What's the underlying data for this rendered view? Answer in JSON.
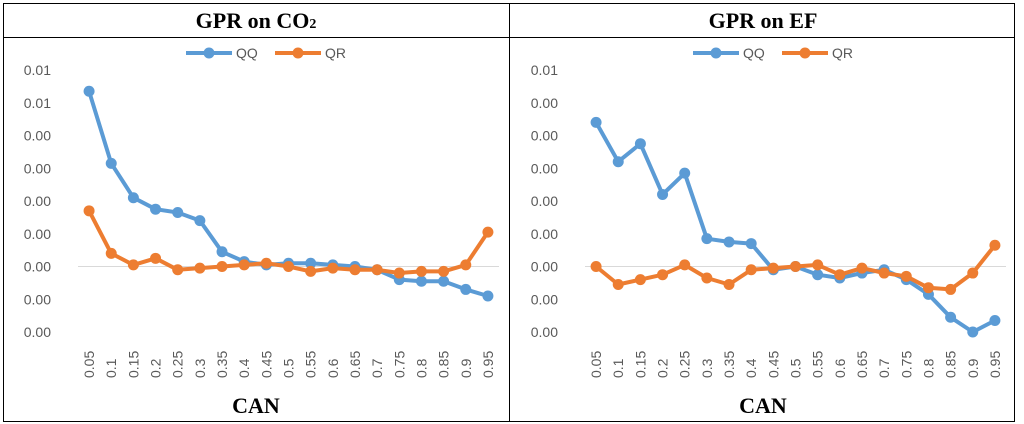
{
  "panels": [
    {
      "title_main": "GPR on CO",
      "title_sub": "2",
      "xlabel": "CAN"
    },
    {
      "title_main": "GPR on EF",
      "title_sub": "",
      "xlabel": "CAN"
    }
  ],
  "colors": {
    "QQ": "#5b9bd5",
    "QR": "#ed7d31",
    "zero_line": "#d9d9d9",
    "axis_text": "#595959"
  },
  "chart_data": [
    {
      "type": "line",
      "title": "GPR on CO₂",
      "xlabel": "CAN",
      "ylabel": "",
      "x": [
        "0.05",
        "0.1",
        "0.15",
        "0.2",
        "0.25",
        "0.3",
        "0.35",
        "0.4",
        "0.45",
        "0.5",
        "0.55",
        "0.6",
        "0.65",
        "0.7",
        "0.75",
        "0.8",
        "0.85",
        "0.9",
        "0.95"
      ],
      "y_tick_labels": [
        "0.01",
        "0.01",
        "0.00",
        "0.00",
        "0.00",
        "0.00",
        "0.00",
        "0.00",
        "0.00"
      ],
      "ylim": [
        -0.004,
        0.012
      ],
      "grid": false,
      "legend": "top",
      "series": [
        {
          "name": "QQ",
          "values": [
            0.0107,
            0.0063,
            0.0042,
            0.0035,
            0.0033,
            0.0028,
            0.0009,
            0.0003,
            0.0001,
            0.0002,
            0.0002,
            0.0001,
            0.0,
            -0.0002,
            -0.0008,
            -0.0009,
            -0.0009,
            -0.0014,
            -0.0018
          ]
        },
        {
          "name": "QR",
          "values": [
            0.0034,
            0.0008,
            0.0001,
            0.0005,
            -0.0002,
            -0.0001,
            0.0,
            0.0001,
            0.0002,
            0.0,
            -0.0003,
            -0.0001,
            -0.0002,
            -0.0002,
            -0.0004,
            -0.0003,
            -0.0003,
            0.0001,
            0.0021
          ]
        }
      ]
    },
    {
      "type": "line",
      "title": "GPR on EF",
      "xlabel": "CAN",
      "ylabel": "",
      "x": [
        "0.05",
        "0.1",
        "0.15",
        "0.2",
        "0.25",
        "0.3",
        "0.35",
        "0.4",
        "0.45",
        "0.5",
        "0.55",
        "0.6",
        "0.65",
        "0.7",
        "0.75",
        "0.8",
        "0.85",
        "0.9",
        "0.95"
      ],
      "y_tick_labels": [
        "0.01",
        "0.00",
        "0.00",
        "0.00",
        "0.00",
        "0.00",
        "0.00",
        "0.00",
        "0.00"
      ],
      "ylim": [
        -0.004,
        0.012
      ],
      "grid": false,
      "legend": "top",
      "series": [
        {
          "name": "QQ",
          "values": [
            0.0088,
            0.0064,
            0.0075,
            0.0044,
            0.0057,
            0.0017,
            0.0015,
            0.0014,
            -0.0002,
            0.0,
            -0.0005,
            -0.0007,
            -0.0004,
            -0.0002,
            -0.0008,
            -0.0017,
            -0.0031,
            -0.004,
            -0.0033
          ]
        },
        {
          "name": "QR",
          "values": [
            0.0,
            -0.0011,
            -0.0008,
            -0.0005,
            0.0001,
            -0.0007,
            -0.0011,
            -0.0002,
            -0.0001,
            0.0,
            0.0001,
            -0.0005,
            -0.0001,
            -0.0004,
            -0.0006,
            -0.0013,
            -0.0014,
            -0.0004,
            0.0013
          ]
        }
      ]
    }
  ]
}
